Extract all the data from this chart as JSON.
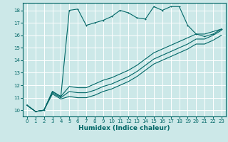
{
  "xlabel": "Humidex (Indice chaleur)",
  "bg_color": "#cce8e8",
  "grid_color": "#ffffff",
  "line_color": "#006666",
  "xlim": [
    -0.5,
    23.5
  ],
  "ylim": [
    9.5,
    18.6
  ],
  "xticks": [
    0,
    1,
    2,
    3,
    4,
    5,
    6,
    7,
    8,
    9,
    10,
    11,
    12,
    13,
    14,
    15,
    16,
    17,
    18,
    19,
    20,
    21,
    22,
    23
  ],
  "yticks": [
    10,
    11,
    12,
    13,
    14,
    15,
    16,
    17,
    18
  ],
  "line1_y": [
    10.4,
    9.9,
    10.0,
    11.5,
    11.1,
    18.0,
    18.1,
    16.8,
    17.0,
    17.2,
    17.5,
    18.0,
    17.8,
    17.4,
    17.3,
    18.3,
    18.0,
    18.3,
    18.3,
    16.8,
    16.1,
    15.9,
    16.1,
    16.5
  ],
  "line2_y": [
    10.4,
    9.9,
    10.0,
    11.5,
    11.1,
    11.9,
    11.8,
    11.8,
    12.1,
    12.4,
    12.6,
    12.9,
    13.2,
    13.6,
    14.1,
    14.6,
    14.9,
    15.2,
    15.5,
    15.8,
    16.1,
    16.1,
    16.3,
    16.5
  ],
  "line3_y": [
    10.4,
    9.9,
    10.0,
    11.4,
    11.0,
    11.5,
    11.4,
    11.4,
    11.6,
    11.9,
    12.1,
    12.4,
    12.7,
    13.1,
    13.6,
    14.1,
    14.4,
    14.7,
    15.0,
    15.3,
    15.7,
    15.7,
    16.0,
    16.4
  ],
  "line4_y": [
    10.4,
    9.9,
    10.0,
    11.3,
    10.9,
    11.1,
    11.0,
    11.0,
    11.2,
    11.5,
    11.7,
    12.0,
    12.3,
    12.7,
    13.2,
    13.7,
    14.0,
    14.3,
    14.6,
    14.9,
    15.3,
    15.3,
    15.6,
    16.0
  ]
}
